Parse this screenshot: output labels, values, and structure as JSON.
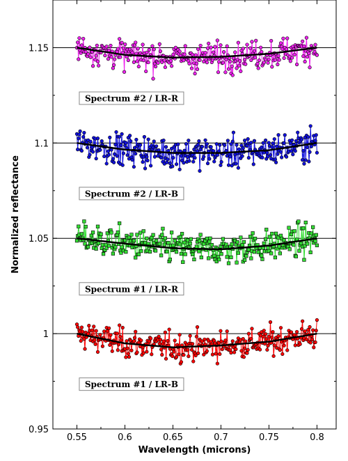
{
  "chart_data": {
    "type": "scatter",
    "title": "",
    "xlabel": "Wavelength (microns)",
    "ylabel": "Normalized reflectance",
    "xlim": [
      0.525,
      0.82
    ],
    "ylim": [
      0.95,
      1.175
    ],
    "x_ticks": [
      0.55,
      0.6,
      0.65,
      0.7,
      0.75,
      0.8
    ],
    "x_tick_labels": [
      "0.55",
      "0.6",
      "0.65",
      "0.7",
      "0.75",
      "0.8"
    ],
    "y_ticks": [
      0.95,
      1.0,
      1.05,
      1.1,
      1.15
    ],
    "y_tick_labels": [
      "0.95",
      "1",
      "1.05",
      "1.1",
      "1.15"
    ],
    "reference_lines": [
      1.0,
      1.05,
      1.1,
      1.15
    ],
    "grid": false,
    "legend": "none",
    "x_range": [
      0.55,
      0.8
    ],
    "series": [
      {
        "name": "Spectrum #1 / LR-B",
        "offset": 1.0,
        "color": "#ff0000",
        "marker": "circle",
        "noise_sd": 0.0052,
        "fit_curve": {
          "x": [
            0.55,
            0.6,
            0.65,
            0.7,
            0.75,
            0.8
          ],
          "y": [
            1.0,
            0.9949,
            0.9928,
            0.9938,
            0.9958,
            1.0
          ]
        }
      },
      {
        "name": "Spectrum #1 / LR-R",
        "offset": 1.05,
        "color": "#33dd33",
        "marker": "square",
        "noise_sd": 0.0057,
        "fit_curve": {
          "x": [
            0.55,
            0.6,
            0.65,
            0.7,
            0.75,
            0.8
          ],
          "y": [
            1.05,
            1.0472,
            1.0448,
            1.0442,
            1.0462,
            1.05
          ]
        }
      },
      {
        "name": "Spectrum #2 / LR-B",
        "offset": 1.1,
        "color": "#1111dd",
        "marker": "circle",
        "noise_sd": 0.0057,
        "fit_curve": {
          "x": [
            0.55,
            0.6,
            0.65,
            0.7,
            0.75,
            0.8
          ],
          "y": [
            1.1,
            1.0965,
            1.0948,
            1.0948,
            1.0962,
            1.1
          ]
        }
      },
      {
        "name": "Spectrum #2 / LR-R",
        "offset": 1.15,
        "color": "#ee22ee",
        "marker": "circle",
        "noise_sd": 0.0052,
        "fit_curve": {
          "x": [
            0.55,
            0.6,
            0.65,
            0.7,
            0.75,
            0.8
          ],
          "y": [
            1.15,
            1.1462,
            1.1448,
            1.1452,
            1.1468,
            1.15
          ]
        }
      }
    ],
    "labels": [
      {
        "text": "Spectrum #2 / LR-R",
        "x": 0.5525,
        "y": 1.1235
      },
      {
        "text": "Spectrum #2 / LR-B",
        "x": 0.5525,
        "y": 1.0735
      },
      {
        "text": "Spectrum #1 / LR-R",
        "x": 0.5525,
        "y": 1.0235
      },
      {
        "text": "Spectrum #1 / LR-B",
        "x": 0.5525,
        "y": 0.9735
      }
    ]
  }
}
